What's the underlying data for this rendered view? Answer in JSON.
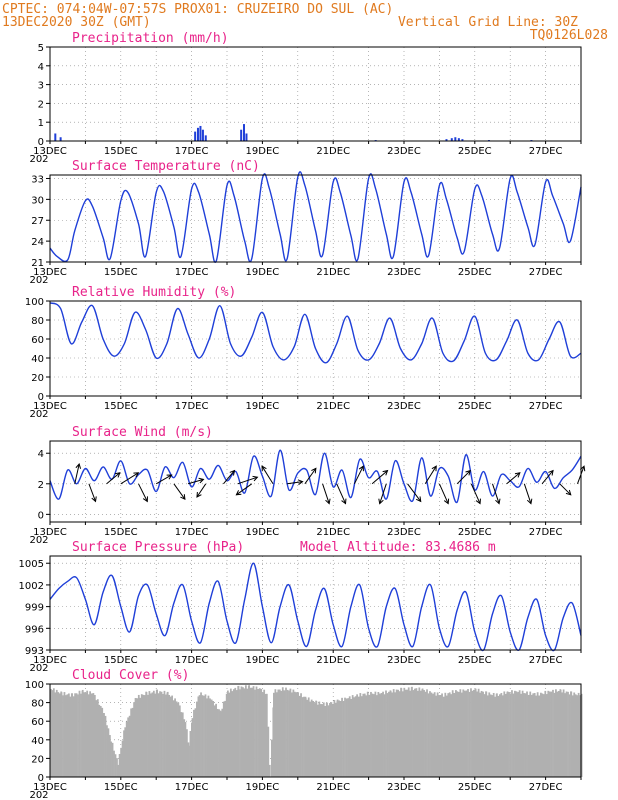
{
  "header": {
    "line1": "CPTEC:   074:04W-07:57S  PROX01: CRUZEIRO DO SUL (AC)",
    "line2_left": "13DEC2020 30Z (GMT)",
    "line2_right": "Vertical Grid Line: 30Z",
    "line3_right": "TQ0126L028"
  },
  "colors": {
    "line": "#1f3fd8",
    "bar": "#1f3fd8",
    "cloud": "#b0b0b0",
    "arrow": "#000000",
    "header": "#e07a1f",
    "title": "#e8238a"
  },
  "x_axis": {
    "labels": [
      "13DEC",
      "15DEC",
      "17DEC",
      "19DEC",
      "21DEC",
      "23DEC",
      "25DEC",
      "27DEC"
    ],
    "days": 15,
    "year_fragment": "202"
  },
  "chart_data": [
    {
      "type": "bar",
      "title": "Precipitation (mm/h)",
      "ylim": [
        0,
        5
      ],
      "yticks": [
        0,
        1,
        2,
        3,
        4,
        5
      ],
      "x": [
        0.15,
        0.3,
        4.1,
        4.18,
        4.25,
        4.32,
        4.4,
        5.4,
        5.48,
        5.55,
        9.2,
        11.2,
        11.35,
        11.45,
        11.55,
        11.65,
        12.4,
        13.6
      ],
      "values": [
        0.4,
        0.2,
        0.5,
        0.7,
        0.8,
        0.6,
        0.3,
        0.6,
        0.9,
        0.4,
        0.05,
        0.1,
        0.15,
        0.2,
        0.15,
        0.1,
        0.05,
        0.05
      ]
    },
    {
      "type": "line",
      "title": "Surface Temperature (nC)",
      "ylim": [
        21,
        33.5
      ],
      "yticks": [
        21,
        24,
        27,
        30,
        33
      ],
      "x": [
        0.0,
        0.2,
        0.5,
        0.7,
        1.0,
        1.2,
        1.5,
        1.7,
        2.0,
        2.2,
        2.5,
        2.7,
        3.0,
        3.2,
        3.5,
        3.7,
        4.0,
        4.2,
        4.5,
        4.7,
        5.0,
        5.2,
        5.5,
        5.7,
        6.0,
        6.2,
        6.5,
        6.7,
        7.0,
        7.2,
        7.5,
        7.7,
        8.0,
        8.2,
        8.5,
        8.7,
        9.0,
        9.2,
        9.5,
        9.7,
        10.0,
        10.2,
        10.5,
        10.7,
        11.0,
        11.2,
        11.5,
        11.7,
        12.0,
        12.2,
        12.5,
        12.7,
        13.0,
        13.2,
        13.5,
        13.7,
        14.0,
        14.2,
        14.5,
        14.7,
        15.0
      ],
      "values": [
        23.0,
        21.8,
        21.3,
        25.5,
        29.8,
        29.0,
        24.5,
        21.5,
        29.8,
        31.0,
        26.5,
        21.8,
        31.0,
        31.2,
        26.0,
        21.8,
        31.5,
        31.0,
        25.0,
        21.2,
        32.0,
        30.5,
        24.0,
        21.5,
        33.0,
        31.5,
        25.0,
        21.5,
        33.2,
        32.0,
        25.5,
        22.0,
        32.5,
        31.0,
        24.8,
        21.5,
        33.0,
        31.5,
        25.0,
        21.8,
        32.5,
        31.0,
        25.0,
        22.0,
        32.0,
        30.0,
        24.5,
        22.5,
        31.5,
        30.5,
        25.0,
        23.0,
        33.0,
        31.0,
        26.0,
        23.5,
        32.5,
        30.5,
        26.5,
        24.0,
        31.8
      ]
    },
    {
      "type": "line",
      "title": "Relative Humidity (%)",
      "ylim": [
        0,
        100
      ],
      "yticks": [
        0,
        20,
        40,
        60,
        80,
        100
      ],
      "x": [
        0.0,
        0.3,
        0.6,
        0.9,
        1.2,
        1.5,
        1.8,
        2.1,
        2.4,
        2.7,
        3.0,
        3.3,
        3.6,
        3.9,
        4.2,
        4.5,
        4.8,
        5.1,
        5.4,
        5.7,
        6.0,
        6.3,
        6.6,
        6.9,
        7.2,
        7.5,
        7.8,
        8.1,
        8.4,
        8.7,
        9.0,
        9.3,
        9.6,
        9.9,
        10.2,
        10.5,
        10.8,
        11.1,
        11.4,
        11.7,
        12.0,
        12.3,
        12.6,
        12.9,
        13.2,
        13.5,
        13.8,
        14.1,
        14.4,
        14.7,
        15.0
      ],
      "values": [
        98,
        92,
        55,
        78,
        95,
        60,
        42,
        55,
        88,
        70,
        40,
        55,
        92,
        65,
        40,
        60,
        95,
        55,
        42,
        62,
        88,
        52,
        38,
        52,
        86,
        50,
        35,
        55,
        84,
        48,
        38,
        55,
        82,
        50,
        38,
        55,
        82,
        45,
        37,
        58,
        84,
        45,
        38,
        58,
        80,
        45,
        38,
        60,
        78,
        42,
        45
      ]
    },
    {
      "type": "line",
      "title": "Surface Wind (m/s)",
      "ylim": [
        -0.5,
        4.8
      ],
      "yticks": [
        0,
        2,
        4
      ],
      "x": [
        0.0,
        0.25,
        0.5,
        0.75,
        1.0,
        1.25,
        1.5,
        1.75,
        2.0,
        2.25,
        2.5,
        2.75,
        3.0,
        3.25,
        3.5,
        3.75,
        4.0,
        4.25,
        4.5,
        4.75,
        5.0,
        5.25,
        5.5,
        5.75,
        6.0,
        6.25,
        6.5,
        6.75,
        7.0,
        7.25,
        7.5,
        7.75,
        8.0,
        8.25,
        8.5,
        8.75,
        9.0,
        9.25,
        9.5,
        9.75,
        10.0,
        10.25,
        10.5,
        10.75,
        11.0,
        11.25,
        11.5,
        11.75,
        12.0,
        12.25,
        12.5,
        12.75,
        13.0,
        13.25,
        13.5,
        13.75,
        14.0,
        14.25,
        14.5,
        14.75,
        15.0
      ],
      "values": [
        2.2,
        1.0,
        2.9,
        2.0,
        3.0,
        2.2,
        3.1,
        2.3,
        3.5,
        2.0,
        2.6,
        2.9,
        1.5,
        3.1,
        2.4,
        3.4,
        1.8,
        3.0,
        2.3,
        3.2,
        2.2,
        2.8,
        1.4,
        3.8,
        2.5,
        1.2,
        4.2,
        1.6,
        2.7,
        2.9,
        1.3,
        4.0,
        1.8,
        2.9,
        1.1,
        3.6,
        2.4,
        2.8,
        1.0,
        3.5,
        2.0,
        0.9,
        3.7,
        1.2,
        3.0,
        2.5,
        0.8,
        3.9,
        1.6,
        2.8,
        1.2,
        2.6,
        2.2,
        1.8,
        3.0,
        2.1,
        2.8,
        1.7,
        2.4,
        2.9,
        3.8
      ],
      "arrows": [
        {
          "day": 0.7,
          "u": 0.2,
          "v": 0.9
        },
        {
          "day": 1.1,
          "u": 0.3,
          "v": -0.8
        },
        {
          "day": 1.6,
          "u": 0.6,
          "v": 0.5
        },
        {
          "day": 2.0,
          "u": 0.8,
          "v": 0.5
        },
        {
          "day": 2.5,
          "u": 0.4,
          "v": -0.8
        },
        {
          "day": 3.0,
          "u": 0.7,
          "v": 0.4
        },
        {
          "day": 3.5,
          "u": 0.5,
          "v": -0.7
        },
        {
          "day": 3.9,
          "u": 0.7,
          "v": 0.2
        },
        {
          "day": 4.4,
          "u": -0.4,
          "v": -0.6
        },
        {
          "day": 4.9,
          "u": 0.5,
          "v": 0.6
        },
        {
          "day": 5.3,
          "u": 0.9,
          "v": 0.3
        },
        {
          "day": 5.7,
          "u": -0.7,
          "v": -0.5
        },
        {
          "day": 6.3,
          "u": -0.5,
          "v": 0.8
        },
        {
          "day": 6.7,
          "u": 0.7,
          "v": 0.1
        },
        {
          "day": 7.2,
          "u": 0.5,
          "v": 0.7
        },
        {
          "day": 7.7,
          "u": 0.3,
          "v": -0.9
        },
        {
          "day": 8.1,
          "u": 0.4,
          "v": -0.9
        },
        {
          "day": 8.6,
          "u": 0.4,
          "v": 0.8
        },
        {
          "day": 9.1,
          "u": 0.7,
          "v": 0.6
        },
        {
          "day": 9.5,
          "u": -0.3,
          "v": -0.9
        },
        {
          "day": 10.1,
          "u": 0.6,
          "v": -0.8
        },
        {
          "day": 10.6,
          "u": 0.5,
          "v": 0.8
        },
        {
          "day": 11.0,
          "u": 0.4,
          "v": -0.9
        },
        {
          "day": 11.5,
          "u": 0.6,
          "v": 0.6
        },
        {
          "day": 11.9,
          "u": 0.4,
          "v": -0.9
        },
        {
          "day": 12.5,
          "u": 0.3,
          "v": -0.9
        },
        {
          "day": 12.9,
          "u": 0.6,
          "v": 0.5
        },
        {
          "day": 13.4,
          "u": 0.3,
          "v": -0.9
        },
        {
          "day": 13.9,
          "u": 0.5,
          "v": 0.6
        },
        {
          "day": 14.4,
          "u": 0.5,
          "v": -0.5
        },
        {
          "day": 14.9,
          "u": 0.3,
          "v": 0.8
        }
      ]
    },
    {
      "type": "line",
      "title": "Surface Pressure (hPa)",
      "subtitle": "Model Altitude: 83.4686 m",
      "ylim": [
        993,
        1006
      ],
      "yticks": [
        993,
        996,
        999,
        1002,
        1005
      ],
      "x": [
        0.0,
        0.25,
        0.5,
        0.75,
        1.0,
        1.25,
        1.5,
        1.75,
        2.0,
        2.25,
        2.5,
        2.75,
        3.0,
        3.25,
        3.5,
        3.75,
        4.0,
        4.25,
        4.5,
        4.75,
        5.0,
        5.25,
        5.5,
        5.75,
        6.0,
        6.25,
        6.5,
        6.75,
        7.0,
        7.25,
        7.5,
        7.75,
        8.0,
        8.25,
        8.5,
        8.75,
        9.0,
        9.25,
        9.5,
        9.75,
        10.0,
        10.25,
        10.5,
        10.75,
        11.0,
        11.25,
        11.5,
        11.75,
        12.0,
        12.25,
        12.5,
        12.75,
        13.0,
        13.25,
        13.5,
        13.75,
        14.0,
        14.25,
        14.5,
        14.75,
        15.0
      ],
      "values": [
        1000,
        1001.5,
        1002.5,
        1003,
        1000,
        996.5,
        1001,
        1003.3,
        999,
        995.5,
        1000.5,
        1002,
        998,
        995,
        999.5,
        1002,
        997,
        994,
        999.5,
        1002.5,
        997,
        994,
        1000,
        1005,
        999,
        994,
        999,
        1002,
        997,
        993.5,
        998.5,
        1001.5,
        996.5,
        993.5,
        999,
        1002,
        996,
        993.5,
        999,
        1001.5,
        996.5,
        993.5,
        999,
        1002,
        996,
        993.5,
        998.5,
        1001,
        995.5,
        993,
        998,
        1000.5,
        995.5,
        993,
        997.5,
        1000,
        995,
        993,
        997.5,
        999.5,
        995
      ]
    },
    {
      "type": "area",
      "title": "Cloud Cover (%)",
      "ylim": [
        0,
        100
      ],
      "yticks": [
        0,
        20,
        40,
        60,
        80,
        100
      ],
      "x": [
        0.0,
        0.3,
        0.6,
        0.9,
        1.2,
        1.5,
        1.7,
        1.9,
        2.1,
        2.4,
        2.7,
        3.0,
        3.3,
        3.6,
        3.8,
        3.9,
        4.0,
        4.2,
        4.5,
        4.8,
        5.0,
        5.3,
        5.6,
        5.9,
        6.1,
        6.2,
        6.3,
        6.6,
        6.9,
        7.2,
        7.5,
        7.8,
        8.1,
        8.4,
        8.7,
        9.0,
        9.3,
        9.6,
        9.9,
        10.2,
        10.5,
        10.8,
        11.1,
        11.4,
        11.7,
        12.0,
        12.3,
        12.6,
        12.9,
        13.2,
        13.5,
        13.8,
        14.1,
        14.4,
        14.7,
        15.0
      ],
      "values": [
        95,
        90,
        88,
        92,
        90,
        70,
        40,
        15,
        55,
        85,
        90,
        92,
        90,
        80,
        60,
        35,
        65,
        90,
        85,
        70,
        92,
        96,
        97,
        95,
        90,
        0,
        92,
        95,
        92,
        85,
        80,
        78,
        82,
        85,
        88,
        90,
        90,
        92,
        94,
        95,
        94,
        90,
        88,
        92,
        93,
        94,
        90,
        88,
        91,
        92,
        90,
        89,
        92,
        93,
        90,
        88
      ]
    }
  ]
}
